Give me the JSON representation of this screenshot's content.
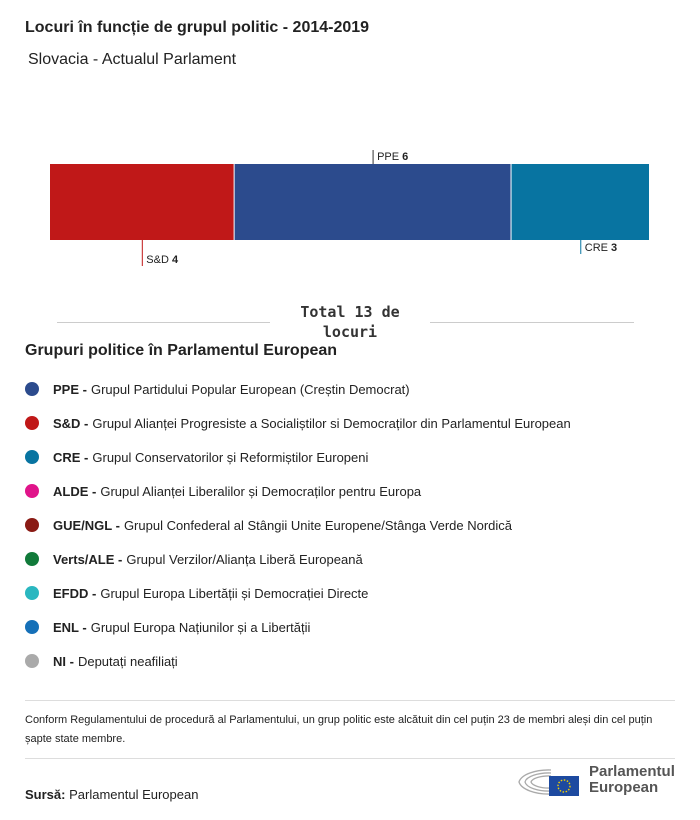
{
  "header": {
    "title": "Locuri în funcție de grupul politic - 2014-2019",
    "subtitle": "Slovacia - Actualul Parlament"
  },
  "chart_data": {
    "type": "bar",
    "orientation": "horizontal-stacked",
    "categories": [
      "S&D",
      "PPE",
      "CRE"
    ],
    "values": [
      4,
      6,
      3
    ],
    "colors": [
      "#c01818",
      "#2c4b8d",
      "#0874a1"
    ],
    "total": 13
  },
  "total_label": "Total 13 de locuri",
  "legend": {
    "title": "Grupuri politice în Parlamentul European",
    "items": [
      {
        "abbr": "PPE -",
        "name": "Grupul Partidului Popular European (Creștin Democrat)",
        "color": "#2c4b8d"
      },
      {
        "abbr": "S&D -",
        "name": "Grupul Alianței Progresiste a Socialiștilor si Democraților din Parlamentul European",
        "color": "#c01818"
      },
      {
        "abbr": "CRE -",
        "name": "Grupul Conservatorilor și Reformiștilor Europeni",
        "color": "#0874a1"
      },
      {
        "abbr": "ALDE -",
        "name": "Grupul Alianței Liberalilor și Democraților pentru Europa",
        "color": "#e0148a"
      },
      {
        "abbr": "GUE/NGL -",
        "name": "Grupul Confederal al Stângii Unite Europene/Stânga Verde Nordică",
        "color": "#8a1a14"
      },
      {
        "abbr": "Verts/ALE -",
        "name": "Grupul Verzilor/Alianța Liberă Europeană",
        "color": "#117a3a"
      },
      {
        "abbr": "EFDD -",
        "name": "Grupul Europa Libertății și Democrației Directe",
        "color": "#2ab7c0"
      },
      {
        "abbr": "ENL -",
        "name": "Grupul Europa Națiunilor și a Libertății",
        "color": "#1570b8"
      },
      {
        "abbr": "NI -",
        "name": "Deputați neafiliați",
        "color": "#aaaaaa"
      }
    ]
  },
  "note": "Conform Regulamentului de procedură al Parlamentului, un grup politic este alcătuit din cel puțin 23 de membri aleși din cel puțin șapte state membre.",
  "source": {
    "label": "Sursă:",
    "value": "Parlamentul European"
  },
  "logo": {
    "line1": "Parlamentul",
    "line2": "European"
  }
}
